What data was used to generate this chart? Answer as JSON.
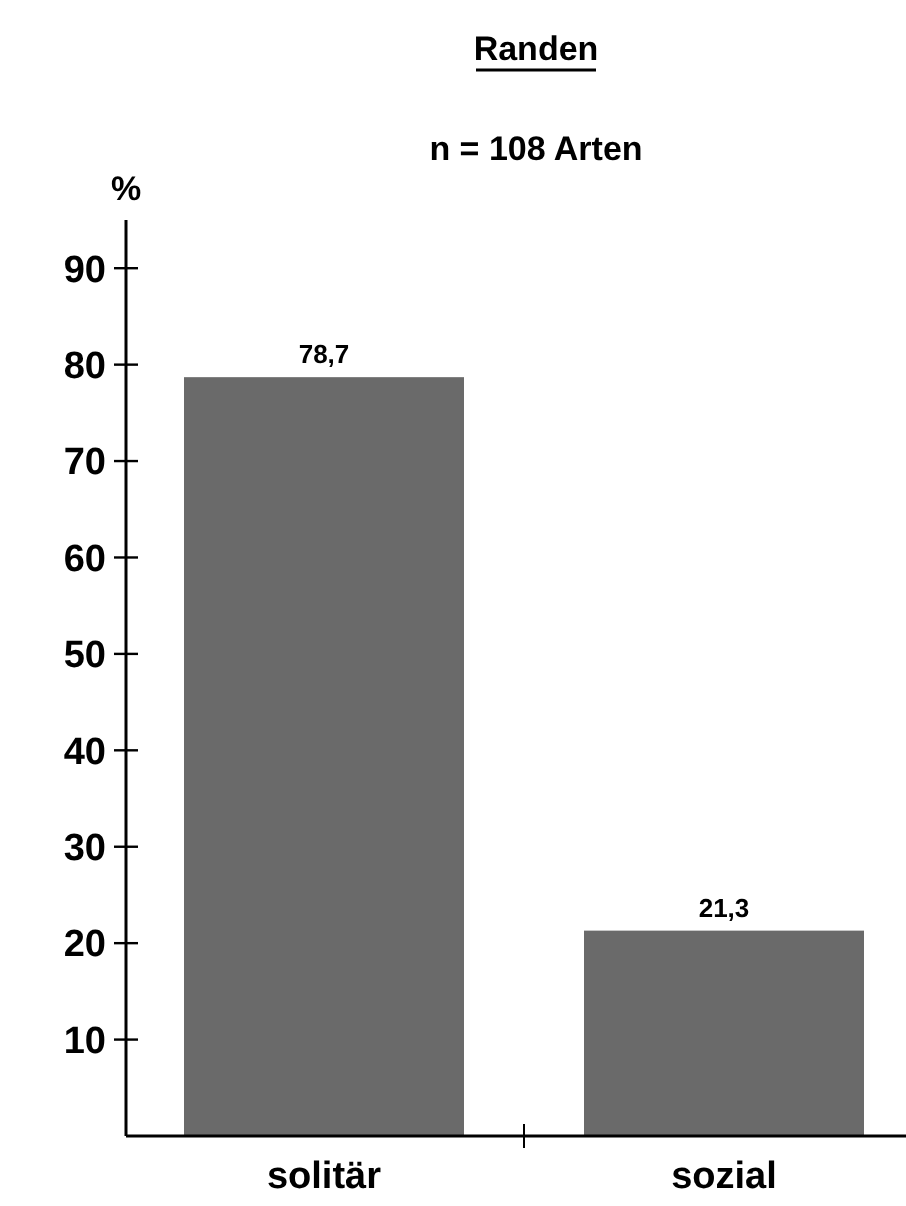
{
  "chart_data": {
    "type": "bar",
    "title": "Randen",
    "subtitle": "n = 108 Arten",
    "ylabel": "%",
    "categories": [
      "solitär",
      "sozial"
    ],
    "values": [
      78.7,
      21.3
    ],
    "value_labels": [
      "78,7",
      "21,3"
    ],
    "color": "#6a6a6a",
    "ylim": [
      0,
      95
    ],
    "yticks": [
      10,
      20,
      30,
      40,
      50,
      60,
      70,
      80,
      90
    ],
    "grid": false
  }
}
